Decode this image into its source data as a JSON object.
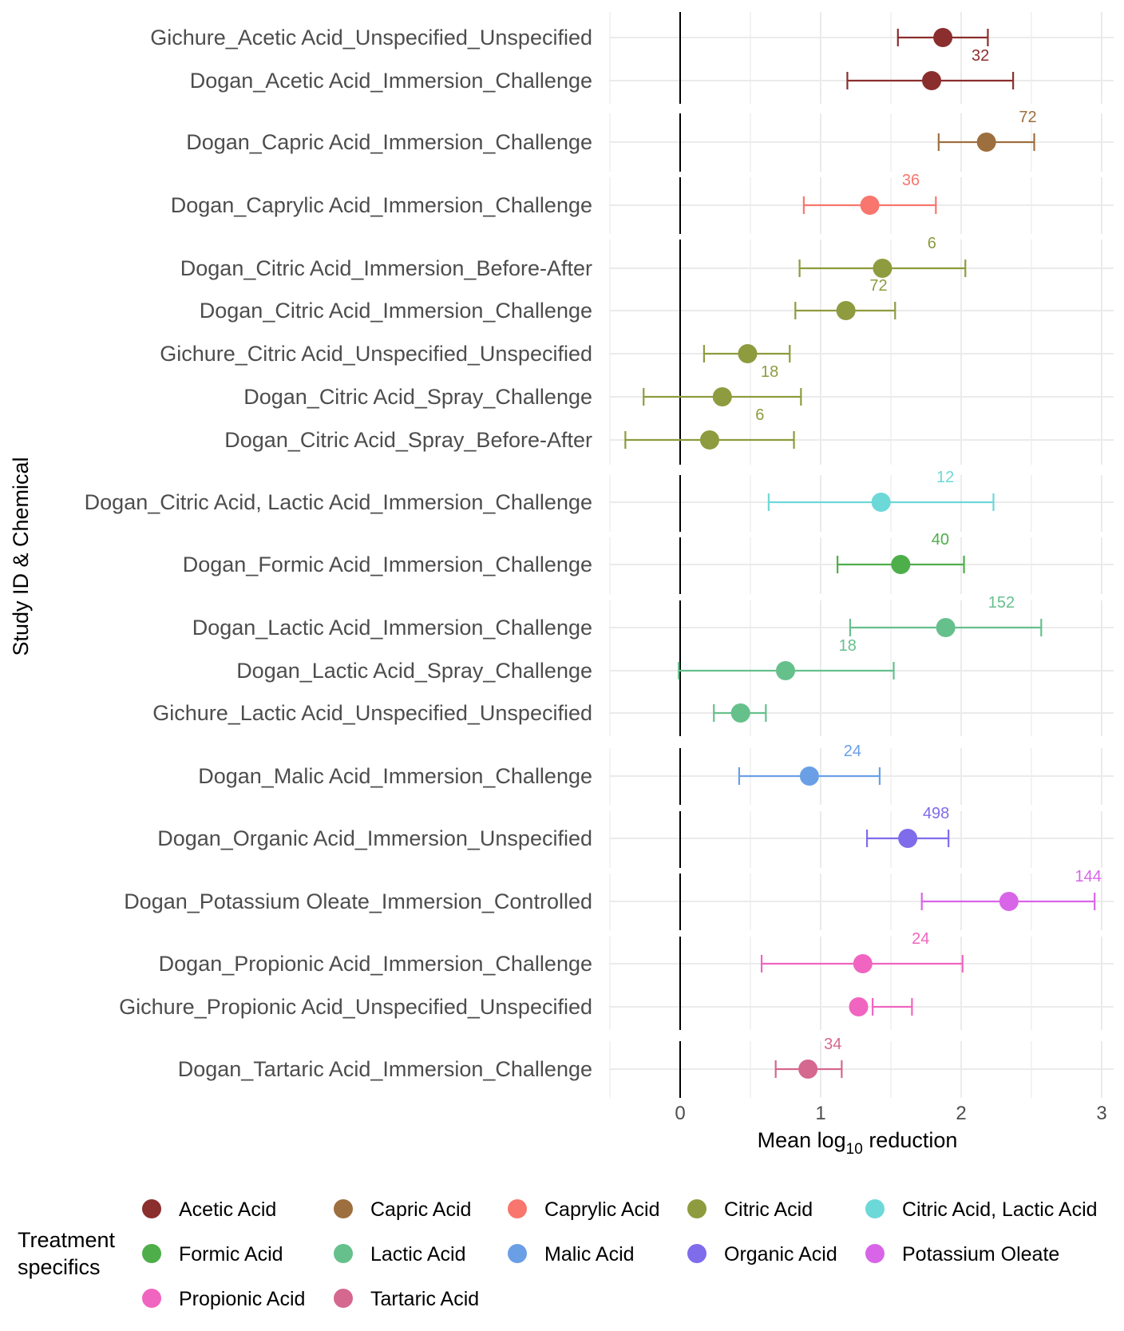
{
  "chart_data": {
    "type": "forest",
    "xlabel": "Mean log",
    "xlabel_sub": "10",
    "xlabel_suffix": " reduction",
    "ylabel": "Study ID & Chemical",
    "xlim": [
      -0.5,
      3.1
    ],
    "xticks": [
      0,
      1,
      2,
      3
    ],
    "grid": true,
    "legend_title": [
      "Treatment",
      "specifics"
    ],
    "legend_position": "bottom",
    "groups": [
      {
        "name": "Acetic Acid",
        "color": "#8B2E2E",
        "rows": [
          {
            "label": "Gichure_Acetic Acid_Unspecified_Unspecified",
            "mean": 1.87,
            "lo": 1.55,
            "hi": 2.19,
            "n": ""
          },
          {
            "label": "Dogan_Acetic Acid_Immersion_Challenge",
            "mean": 1.79,
            "lo": 1.19,
            "hi": 2.37,
            "n": "32"
          }
        ]
      },
      {
        "name": "Capric Acid",
        "color": "#9E6F3E",
        "rows": [
          {
            "label": "Dogan_Capric Acid_Immersion_Challenge",
            "mean": 2.18,
            "lo": 1.84,
            "hi": 2.52,
            "n": "72"
          }
        ]
      },
      {
        "name": "Caprylic Acid",
        "color": "#F8766D",
        "rows": [
          {
            "label": "Dogan_Caprylic Acid_Immersion_Challenge",
            "mean": 1.35,
            "lo": 0.88,
            "hi": 1.82,
            "n": "36"
          }
        ]
      },
      {
        "name": "Citric Acid",
        "color": "#8E9B3E",
        "rows": [
          {
            "label": "Dogan_Citric Acid_Immersion_Before-After",
            "mean": 1.44,
            "lo": 0.85,
            "hi": 2.03,
            "n": "6"
          },
          {
            "label": "Dogan_Citric Acid_Immersion_Challenge",
            "mean": 1.18,
            "lo": 0.82,
            "hi": 1.53,
            "n": "72"
          },
          {
            "label": "Gichure_Citric Acid_Unspecified_Unspecified",
            "mean": 0.48,
            "lo": 0.17,
            "hi": 0.78,
            "n": ""
          },
          {
            "label": "Dogan_Citric Acid_Spray_Challenge",
            "mean": 0.3,
            "lo": -0.26,
            "hi": 0.86,
            "n": "18"
          },
          {
            "label": "Dogan_Citric Acid_Spray_Before-After",
            "mean": 0.21,
            "lo": -0.39,
            "hi": 0.81,
            "n": "6"
          }
        ]
      },
      {
        "name": "Citric Acid, Lactic Acid",
        "color": "#6DD8D8",
        "rows": [
          {
            "label": "Dogan_Citric Acid, Lactic Acid_Immersion_Challenge",
            "mean": 1.43,
            "lo": 0.63,
            "hi": 2.23,
            "n": "12"
          }
        ]
      },
      {
        "name": "Formic Acid",
        "color": "#4EAE4A",
        "rows": [
          {
            "label": "Dogan_Formic Acid_Immersion_Challenge",
            "mean": 1.57,
            "lo": 1.12,
            "hi": 2.02,
            "n": "40"
          }
        ]
      },
      {
        "name": "Lactic Acid",
        "color": "#66C08C",
        "rows": [
          {
            "label": "Dogan_Lactic Acid_Immersion_Challenge",
            "mean": 1.89,
            "lo": 1.21,
            "hi": 2.57,
            "n": "152"
          },
          {
            "label": "Dogan_Lactic Acid_Spray_Challenge",
            "mean": 0.75,
            "lo": -0.01,
            "hi": 1.52,
            "n": "18"
          },
          {
            "label": "Gichure_Lactic Acid_Unspecified_Unspecified",
            "mean": 0.43,
            "lo": 0.24,
            "hi": 0.61,
            "n": ""
          }
        ]
      },
      {
        "name": "Malic Acid",
        "color": "#6A9FE6",
        "rows": [
          {
            "label": "Dogan_Malic Acid_Immersion_Challenge",
            "mean": 0.92,
            "lo": 0.42,
            "hi": 1.42,
            "n": "24"
          }
        ]
      },
      {
        "name": "Organic Acid",
        "color": "#7F6CEB",
        "rows": [
          {
            "label": "Dogan_Organic Acid_Immersion_Unspecified",
            "mean": 1.62,
            "lo": 1.33,
            "hi": 1.91,
            "n": "498"
          }
        ]
      },
      {
        "name": "Potassium Oleate",
        "color": "#D865E8",
        "rows": [
          {
            "label": "Dogan_Potassium Oleate_Immersion_Controlled",
            "mean": 2.34,
            "lo": 1.72,
            "hi": 2.95,
            "n": "144"
          }
        ]
      },
      {
        "name": "Propionic Acid",
        "color": "#F065C0",
        "rows": [
          {
            "label": "Dogan_Propionic Acid_Immersion_Challenge",
            "mean": 1.3,
            "lo": 0.58,
            "hi": 2.01,
            "n": "24"
          },
          {
            "label": "Gichure_Propionic Acid_Unspecified_Unspecified",
            "mean": 1.27,
            "lo": 1.37,
            "hi": 1.65,
            "n": ""
          }
        ]
      },
      {
        "name": "Tartaric Acid",
        "color": "#D4688F",
        "rows": [
          {
            "label": "Dogan_Tartaric Acid_Immersion_Challenge",
            "mean": 0.91,
            "lo": 0.68,
            "hi": 1.15,
            "n": "34"
          }
        ]
      }
    ]
  }
}
